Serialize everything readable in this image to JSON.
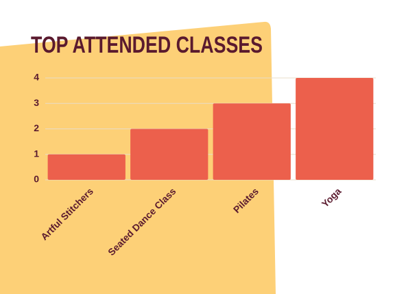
{
  "chart_data": {
    "type": "bar",
    "title": "TOP ATTENDED CLASSES",
    "categories": [
      "Artful Stitchers",
      "Seated Dance Class",
      "Pilates",
      "Yoga"
    ],
    "values": [
      1,
      2,
      3,
      4
    ],
    "color": "#ec604c",
    "ylim": [
      0,
      4
    ],
    "yticks": [
      0,
      1,
      2,
      3,
      4
    ],
    "grid": true
  }
}
